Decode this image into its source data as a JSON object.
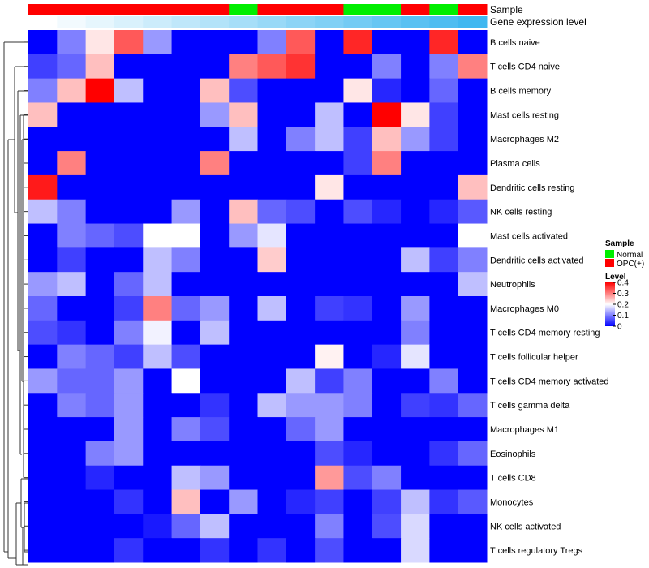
{
  "chart_data": {
    "type": "heatmap",
    "annotations": {
      "sample_label": "Sample",
      "expression_label": "Gene expression level",
      "sample_row": [
        "OPC(+)",
        "OPC(+)",
        "OPC(+)",
        "OPC(+)",
        "OPC(+)",
        "OPC(+)",
        "OPC(+)",
        "Normal",
        "OPC(+)",
        "OPC(+)",
        "OPC(+)",
        "Normal",
        "Normal",
        "OPC(+)",
        "Normal",
        "OPC(+)"
      ],
      "expression_row": [
        0.02,
        0.06,
        0.1,
        0.14,
        0.18,
        0.22,
        0.26,
        0.3,
        0.34,
        0.38,
        0.42,
        0.46,
        0.5,
        0.54,
        0.58,
        0.62
      ]
    },
    "rows": [
      "B cells naive",
      "T cells CD4 naive",
      "B cells memory",
      "Mast cells resting",
      "Macrophages M2",
      "Plasma cells",
      "Dendritic cells resting",
      "NK cells resting",
      "Mast cells activated",
      "Dendritic cells activated",
      "Neutrophils",
      "Macrophages M0",
      "T cells CD4 memory resting",
      "T cells follicular helper",
      "T cells CD4 memory activated",
      "T cells gamma delta",
      "Macrophages M1",
      "Eosinophils",
      "T cells CD8",
      "Monocytes",
      "NK cells activated",
      "T cells regulatory  Tregs"
    ],
    "values": [
      [
        0,
        0.1,
        0.22,
        0.33,
        0.12,
        0,
        0,
        0,
        0.1,
        0.33,
        0,
        0.37,
        0,
        0,
        0.37,
        0
      ],
      [
        0.05,
        0.08,
        0.25,
        0,
        0,
        0,
        0,
        0.3,
        0.33,
        0.36,
        0,
        0,
        0.1,
        0,
        0.1,
        0.3
      ],
      [
        0.1,
        0.25,
        0.4,
        0.15,
        0,
        0,
        0.25,
        0.06,
        0,
        0,
        0,
        0.22,
        0.03,
        0,
        0.08,
        0
      ],
      [
        0.25,
        0,
        0,
        0,
        0,
        0,
        0.12,
        0.25,
        0,
        0,
        0.15,
        0,
        0.4,
        0.22,
        0.05,
        0
      ],
      [
        0,
        0,
        0,
        0,
        0,
        0,
        0,
        0.15,
        0,
        0.1,
        0.15,
        0.05,
        0.25,
        0.12,
        0.05,
        0
      ],
      [
        0,
        0.3,
        0,
        0,
        0,
        0,
        0.3,
        0,
        0,
        0,
        0,
        0.05,
        0.3,
        0,
        0,
        0
      ],
      [
        0.38,
        0,
        0,
        0,
        0,
        0,
        0,
        0,
        0,
        0,
        0.22,
        0,
        0,
        0,
        0,
        0.25
      ],
      [
        0.15,
        0.1,
        0,
        0,
        0,
        0.12,
        0,
        0.25,
        0.08,
        0.06,
        0,
        0.06,
        0.03,
        0,
        0.03,
        0.07
      ],
      [
        0,
        0.1,
        0.08,
        0.06,
        0.2,
        0.2,
        0,
        0.12,
        0.18,
        0,
        0,
        0,
        0,
        0,
        0,
        0.2
      ],
      [
        0,
        0.05,
        0,
        0,
        0.15,
        0.1,
        0,
        0,
        0.24,
        0,
        0,
        0,
        0,
        0.15,
        0.05,
        0.1
      ],
      [
        0.12,
        0.15,
        0,
        0.08,
        0.15,
        0,
        0,
        0,
        0,
        0,
        0,
        0,
        0,
        0,
        0,
        0.15
      ],
      [
        0.08,
        0,
        0,
        0.05,
        0.3,
        0.08,
        0.12,
        0,
        0.15,
        0,
        0.05,
        0.04,
        0,
        0.12,
        0,
        0
      ],
      [
        0.06,
        0.04,
        0,
        0.1,
        0.19,
        0,
        0.15,
        0,
        0,
        0,
        0,
        0,
        0,
        0.1,
        0,
        0
      ],
      [
        0,
        0.1,
        0.08,
        0.05,
        0.15,
        0.06,
        0,
        0,
        0,
        0,
        0.21,
        0,
        0.03,
        0.18,
        0,
        0
      ],
      [
        0.12,
        0.08,
        0.08,
        0.12,
        0,
        0.2,
        0,
        0,
        0,
        0.15,
        0.05,
        0.1,
        0,
        0,
        0.1,
        0
      ],
      [
        0,
        0.1,
        0.08,
        0.12,
        0,
        0,
        0.04,
        0,
        0.15,
        0.12,
        0.12,
        0.1,
        0,
        0.05,
        0.04,
        0.08
      ],
      [
        0,
        0,
        0,
        0.12,
        0,
        0.1,
        0.06,
        0,
        0,
        0.08,
        0.12,
        0,
        0,
        0,
        0,
        0
      ],
      [
        0,
        0,
        0.1,
        0.12,
        0,
        0,
        0,
        0,
        0,
        0,
        0.06,
        0.03,
        0,
        0,
        0.04,
        0.08
      ],
      [
        0,
        0,
        0.03,
        0,
        0,
        0.15,
        0.12,
        0,
        0,
        0,
        0.28,
        0.06,
        0.1,
        0,
        0,
        0
      ],
      [
        0,
        0,
        0,
        0.04,
        0,
        0.25,
        0,
        0.12,
        0,
        0.03,
        0.05,
        0,
        0.05,
        0.15,
        0.04,
        0.07
      ],
      [
        0,
        0,
        0,
        0,
        0.02,
        0.08,
        0.15,
        0,
        0,
        0,
        0.1,
        0,
        0.06,
        0.17,
        0,
        0
      ],
      [
        0,
        0,
        0,
        0.04,
        0,
        0,
        0.04,
        0,
        0.04,
        0,
        0.06,
        0,
        0,
        0.17,
        0,
        0
      ]
    ],
    "legend": {
      "sample_title": "Sample",
      "sample_entries": [
        {
          "label": "Normal",
          "color": "#00ee00"
        },
        {
          "label": "OPC(+)",
          "color": "#ff0000"
        }
      ],
      "level_title": "Level",
      "level_ticks": [
        0.4,
        0.3,
        0.2,
        0.1,
        0
      ],
      "level_range": [
        0,
        0.4
      ]
    },
    "colors": {
      "low": "#0000ff",
      "mid": "#ffffff",
      "high": "#ff0000",
      "normal": "#00ee00",
      "opc": "#ff0000",
      "expr_low": "#ffffff",
      "expr_high": "#40b8f0"
    }
  }
}
